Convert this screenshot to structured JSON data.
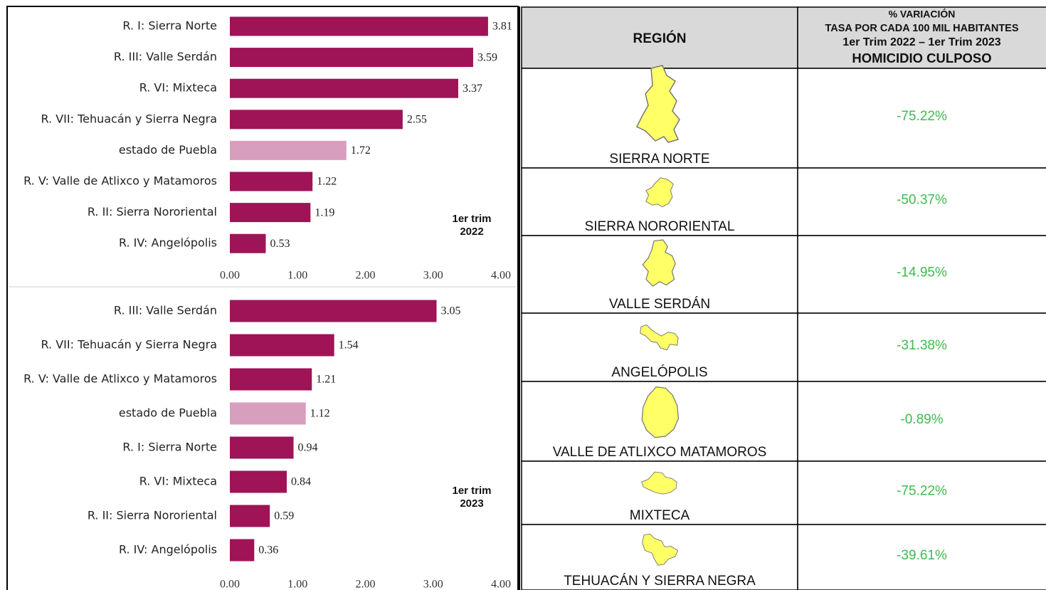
{
  "chart_data": [
    {
      "type": "bar",
      "orientation": "horizontal",
      "annotation": [
        "1er trim",
        "2022"
      ],
      "categories": [
        "R. I: Sierra Norte",
        "R. III: Valle Serdán",
        "R. VI:  Mixteca",
        "R. VII: Tehuacán y Sierra Negra",
        "estado de Puebla",
        "R. V: Valle de Atlixco y Matamoros",
        "R. II: Sierra Nororiental",
        "R. IV: Angelópolis"
      ],
      "values": [
        3.81,
        3.59,
        3.37,
        2.55,
        1.72,
        1.22,
        1.19,
        0.53
      ],
      "colors": [
        "#9e1457",
        "#9e1457",
        "#9e1457",
        "#9e1457",
        "#d89ebd",
        "#9e1457",
        "#9e1457",
        "#9e1457"
      ],
      "xlim": [
        0,
        4
      ],
      "xticks": [
        {
          "value": 0,
          "label": "0.00"
        },
        {
          "value": 1,
          "label": "1.00"
        },
        {
          "value": 2,
          "label": "2.00"
        },
        {
          "value": 3,
          "label": "3.00"
        },
        {
          "value": 4,
          "label": "4.00"
        }
      ]
    },
    {
      "type": "bar",
      "orientation": "horizontal",
      "annotation": [
        "1er trim",
        "2023"
      ],
      "categories": [
        "R. III: Valle Serdán",
        "R. VII: Tehuacán y Sierra Negra",
        "R. V: Valle de Atlixco y Matamoros",
        "estado de Puebla",
        "R. I: Sierra Norte",
        "R. VI:  Mixteca",
        "R. II: Sierra Nororiental",
        "R. IV: Angelópolis"
      ],
      "values": [
        3.05,
        1.54,
        1.21,
        1.12,
        0.94,
        0.84,
        0.59,
        0.36
      ],
      "colors": [
        "#9e1457",
        "#9e1457",
        "#9e1457",
        "#d89ebd",
        "#9e1457",
        "#9e1457",
        "#9e1457",
        "#9e1457"
      ],
      "xlim": [
        0,
        4
      ],
      "xticks": [
        {
          "value": 0,
          "label": "0.00"
        },
        {
          "value": 1,
          "label": "1.00"
        },
        {
          "value": 2,
          "label": "2.00"
        },
        {
          "value": 3,
          "label": "3.00"
        },
        {
          "value": 4,
          "label": "4.00"
        }
      ]
    }
  ],
  "table": {
    "header": {
      "region": "REGIÓN",
      "variation": [
        "% VARIACIÓN",
        "TASA POR CADA 100 MIL HABITANTES",
        "1er Trim 2022 – 1er Trim 2023",
        "HOMICIDIO CULPOSO"
      ]
    },
    "rows": [
      [
        "SIERRA NORTE",
        "-75.22%"
      ],
      [
        "SIERRA NORORIENTAL",
        "-50.37%"
      ],
      [
        "VALLE SERDÁN",
        "-14.95%"
      ],
      [
        "ANGELÓPOLIS",
        "-31.38%"
      ],
      [
        "VALLE DE ATLIXCO MATAMOROS",
        "-0.89%"
      ],
      [
        "MIXTECA",
        "-75.22%"
      ],
      [
        "TEHUACÁN Y SIERRA NEGRA",
        "-39.61%"
      ]
    ]
  }
}
